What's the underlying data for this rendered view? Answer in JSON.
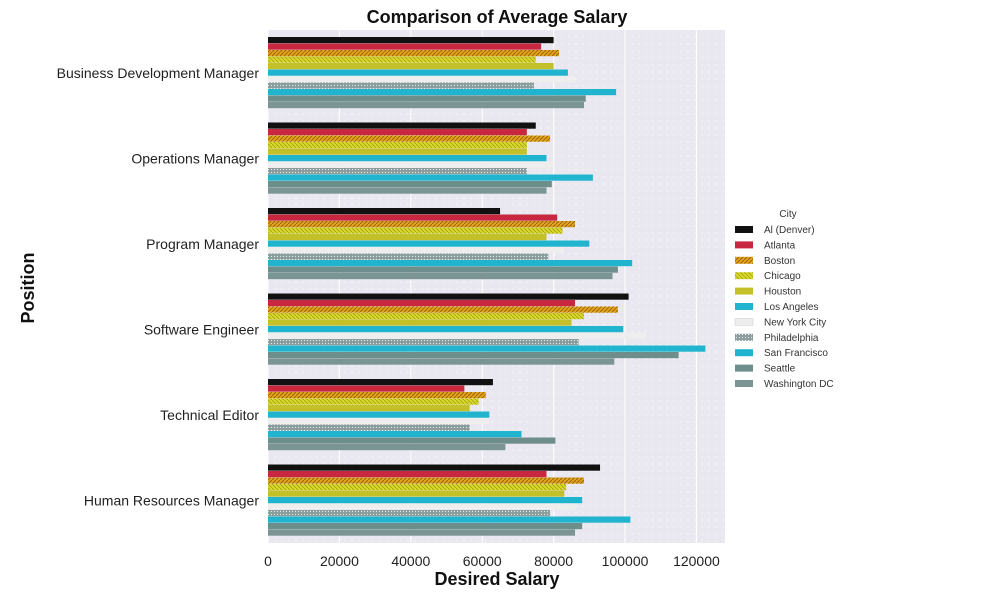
{
  "chart_data": {
    "type": "bar",
    "orientation": "horizontal",
    "title": "Comparison of Average Salary",
    "xlabel": "Desired Salary",
    "ylabel": "Position",
    "xlim": [
      0,
      128000
    ],
    "xticks": [
      0,
      20000,
      40000,
      60000,
      80000,
      100000,
      120000
    ],
    "grid": true,
    "legend_title": "City",
    "legend_position": "right",
    "categories": [
      "Business Development Manager",
      "Operations Manager",
      "Program Manager",
      "Software Engineer",
      "Technical Editor",
      "Human Resources Manager"
    ],
    "series": [
      {
        "name": "Al (Denver)",
        "color": "#111111",
        "values": [
          80000,
          75000,
          65000,
          101000,
          63000,
          93000
        ]
      },
      {
        "name": "Atlanta",
        "color": "#c8283f",
        "values": [
          76500,
          72500,
          81000,
          86000,
          55000,
          78000
        ]
      },
      {
        "name": "Boston",
        "color": "#e3a21a",
        "values": [
          81500,
          79000,
          86000,
          98000,
          61000,
          88500
        ]
      },
      {
        "name": "Chicago",
        "color": "#d7d62a",
        "values": [
          75000,
          72500,
          82500,
          88500,
          59000,
          83500
        ]
      },
      {
        "name": "Houston",
        "color": "#c3c02a",
        "values": [
          80000,
          72500,
          78000,
          85000,
          56500,
          83000
        ]
      },
      {
        "name": "Los Angeles",
        "color": "#20b4cf",
        "values": [
          84000,
          78000,
          90000,
          99500,
          62000,
          88000
        ]
      },
      {
        "name": "New York City",
        "color": "#eeeeee",
        "values": [
          86000,
          80000,
          83000,
          106000,
          62000,
          86000
        ]
      },
      {
        "name": "Philadelphia",
        "color": "#8a9c9b",
        "values": [
          74500,
          72500,
          78500,
          87000,
          56500,
          79000
        ]
      },
      {
        "name": "San Francisco",
        "color": "#20b4cf",
        "values": [
          97500,
          91000,
          102000,
          122500,
          71000,
          101500
        ]
      },
      {
        "name": "Seattle",
        "color": "#6e8e8c",
        "values": [
          89000,
          79500,
          98000,
          115000,
          80500,
          88000
        ]
      },
      {
        "name": "Washington DC",
        "color": "#7a9593",
        "values": [
          88500,
          78000,
          96500,
          97000,
          66500,
          86000
        ]
      }
    ]
  }
}
